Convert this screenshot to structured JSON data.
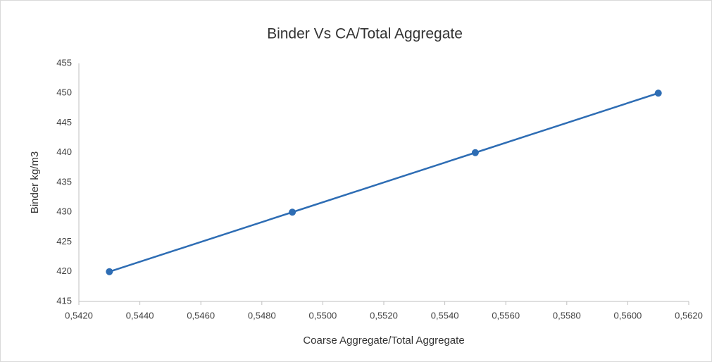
{
  "chart_data": {
    "type": "line",
    "title": "Binder Vs CA/Total Aggregate",
    "x_label": "Coarse Aggregate/Total Aggregate",
    "y_label": "Binder kg/m3",
    "x": [
      0.543,
      0.549,
      0.555,
      0.561
    ],
    "series": [
      {
        "name": "Binder",
        "color": "#2e6db4",
        "values": [
          420,
          430,
          440,
          450
        ]
      }
    ],
    "xlim": [
      0.542,
      0.562
    ],
    "xticks": [
      {
        "value": 0.542,
        "label": "0,5420"
      },
      {
        "value": 0.544,
        "label": "0,5440"
      },
      {
        "value": 0.546,
        "label": "0,5460"
      },
      {
        "value": 0.548,
        "label": "0,5480"
      },
      {
        "value": 0.55,
        "label": "0,5500"
      },
      {
        "value": 0.552,
        "label": "0,5520"
      },
      {
        "value": 0.554,
        "label": "0,5540"
      },
      {
        "value": 0.556,
        "label": "0,5560"
      },
      {
        "value": 0.558,
        "label": "0,5580"
      },
      {
        "value": 0.56,
        "label": "0,5600"
      },
      {
        "value": 0.562,
        "label": "0,5620"
      }
    ],
    "ylim": [
      415,
      455
    ],
    "yticks": [
      415,
      420,
      425,
      430,
      435,
      440,
      445,
      450,
      455
    ],
    "grid": false,
    "legend": false
  }
}
